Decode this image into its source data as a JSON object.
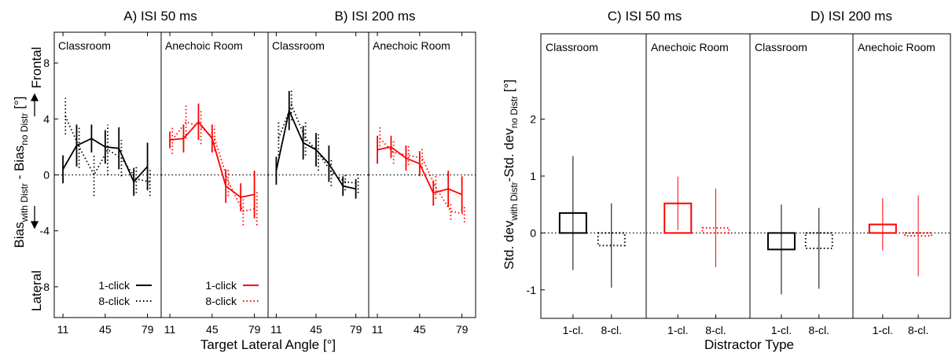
{
  "chart_data": [
    {
      "type": "line",
      "title": "A) ISI 50 ms",
      "xlabel": "Target Lateral Angle [°]",
      "ylabel": "",
      "xticks": [
        11,
        45,
        79
      ],
      "yticks": [
        -8,
        -4,
        0,
        4,
        8
      ],
      "xlim": [
        4,
        90
      ],
      "ylim": [
        -10.2,
        10.2
      ],
      "panels": [
        {
          "label": "Classroom",
          "color": "#000000",
          "series": [
            {
              "name": "1-click",
              "dash": "solid",
              "x": [
                11,
                22,
                34,
                45,
                56,
                68,
                79
              ],
              "y": [
                0.4,
                2.1,
                2.6,
                2.0,
                1.9,
                -0.5,
                0.6
              ],
              "err": [
                1.0,
                1.5,
                1.0,
                1.2,
                1.5,
                1.0,
                1.7
              ]
            },
            {
              "name": "8-click",
              "dash": "dotted",
              "x": [
                13,
                24,
                36,
                47,
                58,
                70,
                81
              ],
              "y": [
                4.2,
                2.0,
                0.0,
                1.8,
                1.2,
                -0.3,
                -0.5
              ],
              "err": [
                1.3,
                1.5,
                1.5,
                1.8,
                1.3,
                1.0,
                1.0
              ]
            }
          ]
        },
        {
          "label": "Anechoic Room",
          "color": "#ff0000",
          "series": [
            {
              "name": "1-click",
              "dash": "solid",
              "x": [
                11,
                22,
                34,
                45,
                56,
                68,
                79
              ],
              "y": [
                2.5,
                2.6,
                3.8,
                2.6,
                -0.8,
                -1.6,
                -1.4
              ],
              "err": [
                0.6,
                1.0,
                1.3,
                1.0,
                1.2,
                1.0,
                1.7
              ]
            },
            {
              "name": "8-click",
              "dash": "dotted",
              "x": [
                13,
                24,
                36,
                47,
                58,
                70,
                81
              ],
              "y": [
                2.5,
                3.8,
                3.4,
                2.6,
                -0.5,
                -2.6,
                -2.4
              ],
              "err": [
                1.0,
                1.2,
                1.2,
                0.9,
                1.0,
                1.0,
                1.2
              ]
            }
          ]
        }
      ],
      "legend": {
        "entries": [
          "1-click",
          "8-click"
        ],
        "placement": "bottom-right"
      }
    },
    {
      "type": "line",
      "title": "B) ISI 200 ms",
      "xlabel": "",
      "ylabel": "",
      "xticks": [
        11,
        45,
        79
      ],
      "xlim": [
        4,
        90
      ],
      "ylim": [
        -10.2,
        10.2
      ],
      "panels": [
        {
          "label": "Classroom",
          "color": "#000000",
          "series": [
            {
              "name": "1-click",
              "dash": "solid",
              "x": [
                11,
                22,
                34,
                45,
                56,
                68,
                79
              ],
              "y": [
                0.3,
                4.6,
                2.3,
                1.8,
                0.8,
                -0.8,
                -1.0
              ],
              "err": [
                1.0,
                1.4,
                1.2,
                1.2,
                1.3,
                0.7,
                0.7
              ]
            },
            {
              "name": "8-click",
              "dash": "dotted",
              "x": [
                13,
                24,
                36,
                47,
                58,
                70,
                81
              ],
              "y": [
                2.6,
                5.0,
                2.6,
                1.6,
                0.2,
                -0.5,
                -0.6
              ],
              "err": [
                1.2,
                1.1,
                1.2,
                1.3,
                1.0,
                0.6,
                0.7
              ]
            }
          ]
        },
        {
          "label": "Anechoic Room",
          "color": "#ff0000",
          "series": [
            {
              "name": "1-click",
              "dash": "solid",
              "x": [
                11,
                22,
                34,
                45,
                56,
                68,
                79
              ],
              "y": [
                1.8,
                2.0,
                1.2,
                0.8,
                -1.3,
                -1.0,
                -1.4
              ],
              "err": [
                1.0,
                0.8,
                0.9,
                0.9,
                0.9,
                1.3,
                1.3
              ]
            },
            {
              "name": "8-click",
              "dash": "dotted",
              "x": [
                13,
                24,
                36,
                47,
                58,
                70,
                81
              ],
              "y": [
                2.6,
                1.6,
                1.4,
                1.2,
                -0.9,
                -2.6,
                -2.8
              ],
              "err": [
                0.8,
                0.8,
                0.7,
                0.7,
                0.8,
                0.6,
                0.6
              ]
            }
          ]
        }
      ]
    },
    {
      "type": "bar",
      "title": "C) ISI 50 ms",
      "xlabel": "Distractor Type",
      "categories": [
        "1-cl.",
        "8-cl."
      ],
      "yticks": [
        -1,
        0,
        1,
        2
      ],
      "ylim": [
        -1.5,
        3.5
      ],
      "panels": [
        {
          "label": "Classroom",
          "color": "#000000",
          "values": [
            0.35,
            -0.22
          ],
          "err": [
            1.0,
            0.74
          ]
        },
        {
          "label": "Anechoic Room",
          "color": "#ff0000",
          "values": [
            0.52,
            0.09
          ],
          "err": [
            0.47,
            0.69
          ]
        }
      ]
    },
    {
      "type": "bar",
      "title": "D) ISI 200 ms",
      "xlabel": "",
      "categories": [
        "1-cl.",
        "8-cl."
      ],
      "ylim": [
        -1.5,
        3.5
      ],
      "panels": [
        {
          "label": "Classroom",
          "color": "#000000",
          "values": [
            -0.29,
            -0.27
          ],
          "err": [
            0.79,
            0.71
          ]
        },
        {
          "label": "Anechoic Room",
          "color": "#ff0000",
          "values": [
            0.15,
            -0.05
          ],
          "err": [
            0.46,
            0.71
          ]
        }
      ]
    }
  ],
  "left_ylabel": {
    "main": "Bias",
    "sub1": "with Distr",
    "mid": " - Bias",
    "sub2": "no Distr",
    "unit": " [°]",
    "up": "Frontal",
    "down": "Lateral"
  },
  "right_ylabel": {
    "main": "Std. dev",
    "sub1": "with Distr",
    "mid": "-Std. dev",
    "sub2": "no Distr",
    "unit": " [°]"
  }
}
